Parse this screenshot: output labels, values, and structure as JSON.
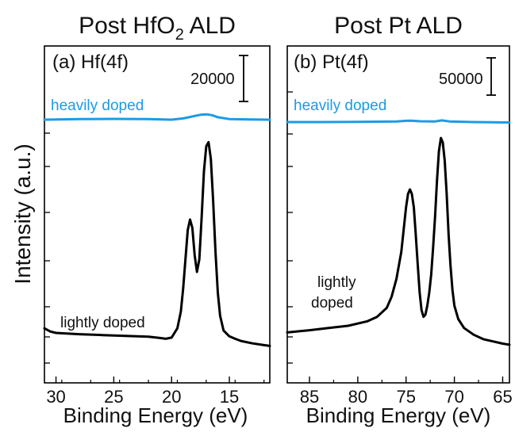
{
  "ylabel": "Intensity (a.u.)",
  "chart_data": [
    {
      "type": "line",
      "title_main": "Post HfO",
      "title_sub": "2",
      "title_rest": " ALD",
      "panel_label": "(a) Hf(4f)",
      "xlabel": "Binding Energy (eV)",
      "xlim": [
        31,
        11.5
      ],
      "xticks": [
        30,
        25,
        20,
        15
      ],
      "scale_bar_label": "20000",
      "grid": false,
      "series": [
        {
          "name": "heavily doped",
          "color": "#1a9be6",
          "x": [
            31,
            28,
            25,
            22,
            20,
            19,
            18.5,
            18,
            17.5,
            17,
            16.5,
            16,
            15,
            13,
            11.5
          ],
          "y": [
            1.0,
            1.003,
            1.004,
            1.003,
            1.0,
            1.006,
            1.012,
            1.018,
            1.024,
            1.026,
            1.022,
            1.012,
            1.003,
            1.001,
            1.0
          ]
        },
        {
          "name": "lightly doped",
          "color": "#000000",
          "x": [
            31,
            30.5,
            30,
            28,
            26,
            24,
            22,
            21,
            20.5,
            20,
            19.5,
            19.2,
            19,
            18.8,
            18.6,
            18.4,
            18.2,
            18.0,
            17.8,
            17.6,
            17.4,
            17.2,
            17.0,
            16.8,
            16.6,
            16.4,
            16.2,
            16.0,
            15.8,
            15.5,
            15.0,
            14.5,
            14,
            13,
            12,
            11.5
          ],
          "y": [
            0.09,
            0.075,
            0.068,
            0.062,
            0.058,
            0.054,
            0.05,
            0.044,
            0.04,
            0.046,
            0.09,
            0.17,
            0.28,
            0.42,
            0.56,
            0.61,
            0.57,
            0.44,
            0.36,
            0.42,
            0.62,
            0.84,
            0.96,
            0.98,
            0.9,
            0.7,
            0.46,
            0.26,
            0.15,
            0.08,
            0.052,
            0.04,
            0.03,
            0.018,
            0.01,
            0.006
          ]
        }
      ]
    },
    {
      "type": "line",
      "title_main": "Post Pt ALD",
      "panel_label": "(b) Pt(4f)",
      "xlabel": "Binding Energy (eV)",
      "xlim": [
        87.3,
        64.3
      ],
      "xticks": [
        85,
        80,
        75,
        70,
        65
      ],
      "scale_bar_label": "50000",
      "grid": false,
      "series": [
        {
          "name": "heavily doped",
          "color": "#1a9be6",
          "x": [
            87.3,
            84,
            80,
            76,
            75,
            74.5,
            73.5,
            72,
            71.3,
            70.5,
            68,
            66,
            64.3
          ],
          "y": [
            1.0,
            1.0,
            1.001,
            1.003,
            1.006,
            1.007,
            1.004,
            1.003,
            1.008,
            1.003,
            1.0,
            0.999,
            0.998
          ]
        },
        {
          "name": "lightly doped",
          "color": "#000000",
          "x": [
            87.3,
            85,
            83,
            81,
            79,
            78,
            77,
            76.5,
            76,
            75.5,
            75.2,
            75.0,
            74.8,
            74.6,
            74.4,
            74.2,
            74.0,
            73.8,
            73.6,
            73.4,
            73.2,
            73.0,
            72.8,
            72.6,
            72.4,
            72.2,
            72.0,
            71.8,
            71.6,
            71.4,
            71.2,
            71.0,
            70.8,
            70.6,
            70.4,
            70.2,
            70.0,
            69.6,
            69.0,
            68,
            67,
            66,
            65,
            64.3
          ],
          "y": [
            0.08,
            0.09,
            0.1,
            0.11,
            0.13,
            0.15,
            0.19,
            0.24,
            0.32,
            0.44,
            0.56,
            0.64,
            0.7,
            0.72,
            0.7,
            0.64,
            0.52,
            0.39,
            0.26,
            0.18,
            0.15,
            0.16,
            0.2,
            0.26,
            0.34,
            0.46,
            0.6,
            0.76,
            0.89,
            0.95,
            0.93,
            0.85,
            0.7,
            0.52,
            0.38,
            0.27,
            0.2,
            0.14,
            0.1,
            0.07,
            0.05,
            0.04,
            0.03,
            0.025
          ]
        }
      ]
    }
  ]
}
